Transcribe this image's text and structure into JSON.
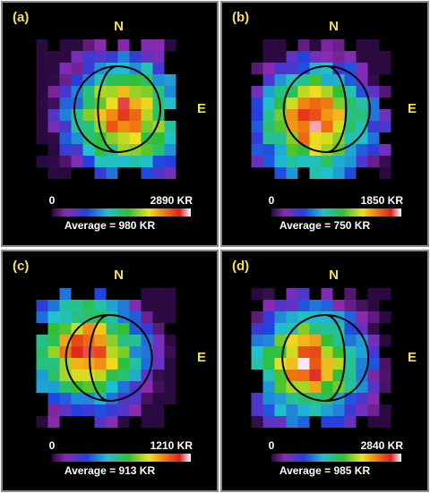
{
  "panels": [
    {
      "label": "(a)",
      "north": "N",
      "east": "E",
      "scale_min": "0",
      "scale_max": "2890 KR",
      "average": "Average = 980 KR"
    },
    {
      "label": "(b)",
      "north": "N",
      "east": "E",
      "scale_min": "0",
      "scale_max": "1850 KR",
      "average": "Average = 750 KR"
    },
    {
      "label": "(c)",
      "north": "N",
      "east": "E",
      "scale_min": "0",
      "scale_max": "1210 KR",
      "average": "Average = 913 KR"
    },
    {
      "label": "(d)",
      "north": "N",
      "east": "E",
      "scale_min": "0",
      "scale_max": "2840 KR",
      "average": "Average = 985 KR"
    }
  ]
}
